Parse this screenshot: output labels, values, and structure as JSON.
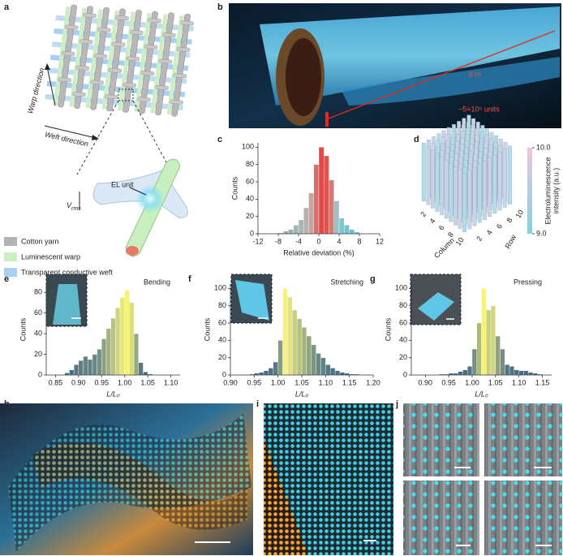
{
  "panels": [
    "a",
    "b",
    "c",
    "d",
    "e",
    "f",
    "g",
    "h",
    "i",
    "j"
  ],
  "panel_a": {
    "warp": "Warp direction",
    "weft": "Weft direction",
    "el_unit": "EL unit",
    "v_rms": {
      "symbol": "V",
      "subscript": "rms"
    },
    "legend": [
      {
        "name": "Cotton yarn",
        "color": "#b3b3b3"
      },
      {
        "name": "Luminescent warp",
        "color": "#cdeec2"
      },
      {
        "name": "Transparent conductive weft",
        "color": "#a9d0f2"
      }
    ]
  },
  "panel_b": {
    "length": "6 m",
    "units": "~5×10⁵ units"
  },
  "chart_data": [
    {
      "type": "histogram",
      "x_label": "Relative deviation (%)",
      "y_label": "Counts",
      "bins": [
        -8,
        -7,
        -6,
        -5,
        -4,
        -3,
        -2,
        -1,
        0,
        1,
        2,
        3,
        4,
        5,
        6,
        7,
        8
      ],
      "values": [
        1,
        3,
        5,
        10,
        16,
        30,
        47,
        80,
        100,
        90,
        62,
        38,
        18,
        10,
        5,
        2
      ],
      "colors": [
        "#9aa8ad",
        "#9aa8ad",
        "#9fb0b4",
        "#a4b4b6",
        "#aab5b5",
        "#b9b0ad",
        "#c9a19f",
        "#db6d68",
        "#e04a48",
        "#df5350",
        "#d27a74",
        "#9fbfc4",
        "#7fc6d0",
        "#6fc3d1",
        "#6abfcf",
        "#6abfcf"
      ],
      "xlim": [
        -12,
        12
      ],
      "xticks": [
        -12,
        -8,
        -4,
        0,
        4,
        8,
        12
      ],
      "ylim": [
        0,
        105
      ],
      "yticks": [
        0,
        20,
        40,
        60,
        80,
        100
      ]
    },
    {
      "type": "bar3d",
      "x_label": "Column",
      "y_label": "Row",
      "xticks": [
        2,
        4,
        6,
        8,
        10
      ],
      "yticks": [
        2,
        4,
        6,
        8,
        10
      ],
      "colorbar_label": [
        "Electroluminescence",
        "intensity (a.u.)"
      ],
      "clim": [
        9,
        10
      ],
      "cticks": [
        {
          "value": 10,
          "label": "10.0"
        },
        {
          "value": 9,
          "label": "9.0"
        }
      ],
      "color_low": "#7fd3e0",
      "color_high": "#ecc6df"
    },
    {
      "type": "histogram",
      "title": "Bending",
      "x_label": "L/L₀",
      "y_label": "Counts",
      "bins": [
        0.87,
        0.88,
        0.89,
        0.9,
        0.91,
        0.92,
        0.93,
        0.94,
        0.95,
        0.96,
        0.97,
        0.98,
        0.99,
        1.0,
        1.01,
        1.02,
        1.03,
        1.04,
        1.05,
        1.06
      ],
      "values": [
        2,
        5,
        10,
        14,
        18,
        15,
        20,
        25,
        35,
        45,
        55,
        65,
        75,
        82,
        70,
        40,
        12,
        3,
        1
      ],
      "color_low": "#3d6585",
      "color_high": "#f6f27a",
      "xlim": [
        0.83,
        1.12
      ],
      "xticks": [
        0.85,
        {
          "value": 0.9,
          "label": "0.90"
        },
        0.95,
        {
          "value": 1.0,
          "label": "1.00"
        },
        1.05,
        {
          "value": 1.1,
          "label": "1.10"
        }
      ],
      "ylim": [
        0,
        88
      ],
      "yticks": [
        0,
        20,
        40,
        60,
        80
      ]
    },
    {
      "type": "histogram",
      "title": "Stretching",
      "x_label": "L/L₀",
      "y_label": "Counts",
      "bins": [
        0.94,
        0.95,
        0.96,
        0.97,
        0.98,
        0.99,
        1.0,
        1.01,
        1.02,
        1.03,
        1.04,
        1.05,
        1.06,
        1.07,
        1.08,
        1.09,
        1.1,
        1.11,
        1.12,
        1.13,
        1.14,
        1.15,
        1.16,
        1.17
      ],
      "values": [
        1,
        2,
        3,
        5,
        8,
        15,
        40,
        100,
        90,
        75,
        65,
        55,
        45,
        35,
        25,
        20,
        12,
        8,
        5,
        3,
        2,
        1,
        1
      ],
      "color_low": "#3d6585",
      "color_high": "#f6f27a",
      "xlim": [
        0.9,
        1.2
      ],
      "xticks": [
        {
          "value": 0.9,
          "label": "0.90"
        },
        0.95,
        {
          "value": 1.0,
          "label": "1.00"
        },
        1.05,
        {
          "value": 1.1,
          "label": "1.10"
        },
        1.15,
        {
          "value": 1.2,
          "label": "1.20"
        }
      ],
      "ylim": [
        0,
        105
      ],
      "yticks": [
        0,
        20,
        40,
        60,
        80,
        100
      ]
    },
    {
      "type": "histogram",
      "title": "Pressing",
      "x_label": "L/L₀",
      "y_label": "Counts",
      "bins": [
        0.93,
        0.94,
        0.95,
        0.96,
        0.97,
        0.98,
        0.99,
        1.0,
        1.01,
        1.02,
        1.03,
        1.04,
        1.05,
        1.06,
        1.07,
        1.08,
        1.09,
        1.1,
        1.11,
        1.12,
        1.13,
        1.14,
        1.15
      ],
      "values": [
        1,
        1,
        2,
        2,
        4,
        6,
        10,
        30,
        60,
        100,
        75,
        80,
        45,
        30,
        12,
        10,
        6,
        5,
        5,
        3,
        2,
        1
      ],
      "color_low": "#3d6585",
      "color_high": "#f6f27a",
      "xlim": [
        0.87,
        1.17
      ],
      "xticks": [
        {
          "value": 0.9,
          "label": "0.90"
        },
        0.95,
        {
          "value": 1.0,
          "label": "1.00"
        },
        1.05,
        {
          "value": 1.1,
          "label": "1.10"
        },
        1.15
      ],
      "ylim": [
        0,
        105
      ],
      "yticks": [
        0,
        20,
        40,
        60,
        80,
        100
      ]
    }
  ]
}
